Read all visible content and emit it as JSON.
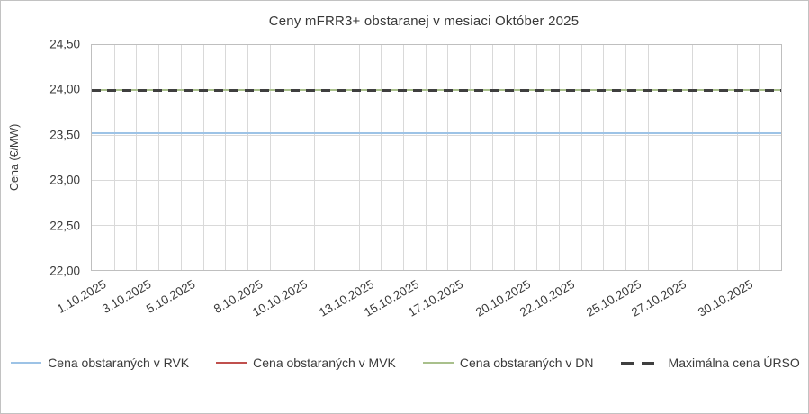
{
  "chart_data": {
    "type": "line",
    "title": "Ceny mFRR3+ obstaranej v mesiaci Október 2025",
    "xlabel": "",
    "ylabel": "Cena (€/MW)",
    "ylim": [
      22.0,
      24.5
    ],
    "grid": true,
    "legend_position": "bottom",
    "yticks": [
      {
        "value": 22.0,
        "label": "22,00"
      },
      {
        "value": 22.5,
        "label": "22,50"
      },
      {
        "value": 23.0,
        "label": "23,00"
      },
      {
        "value": 23.5,
        "label": "23,50"
      },
      {
        "value": 24.0,
        "label": "24,00"
      },
      {
        "value": 24.5,
        "label": "24,50"
      }
    ],
    "x_days": 31,
    "xticks": [
      {
        "day": 1,
        "label": "1.10.2025"
      },
      {
        "day": 3,
        "label": "3.10.2025"
      },
      {
        "day": 5,
        "label": "5.10.2025"
      },
      {
        "day": 8,
        "label": "8.10.2025"
      },
      {
        "day": 10,
        "label": "10.10.2025"
      },
      {
        "day": 13,
        "label": "13.10.2025"
      },
      {
        "day": 15,
        "label": "15.10.2025"
      },
      {
        "day": 17,
        "label": "17.10.2025"
      },
      {
        "day": 20,
        "label": "20.10.2025"
      },
      {
        "day": 22,
        "label": "22.10.2025"
      },
      {
        "day": 25,
        "label": "25.10.2025"
      },
      {
        "day": 27,
        "label": "27.10.2025"
      },
      {
        "day": 30,
        "label": "30.10.2025"
      }
    ],
    "series": [
      {
        "name": "Cena obstaraných v RVK",
        "value": 23.52,
        "constant": true,
        "style": "solid",
        "color": "#9DC3E6"
      },
      {
        "name": "Cena obstaraných v MVK",
        "value": 24.0,
        "constant": true,
        "style": "solid",
        "color": "#C0504D"
      },
      {
        "name": "Cena obstaraných v DN",
        "value": 24.0,
        "constant": true,
        "style": "solid",
        "color": "#A9C08C"
      },
      {
        "name": "Maximálna cena ÚRSO",
        "value": 24.0,
        "constant": true,
        "style": "dashed",
        "color": "#3f3f3f"
      }
    ]
  }
}
